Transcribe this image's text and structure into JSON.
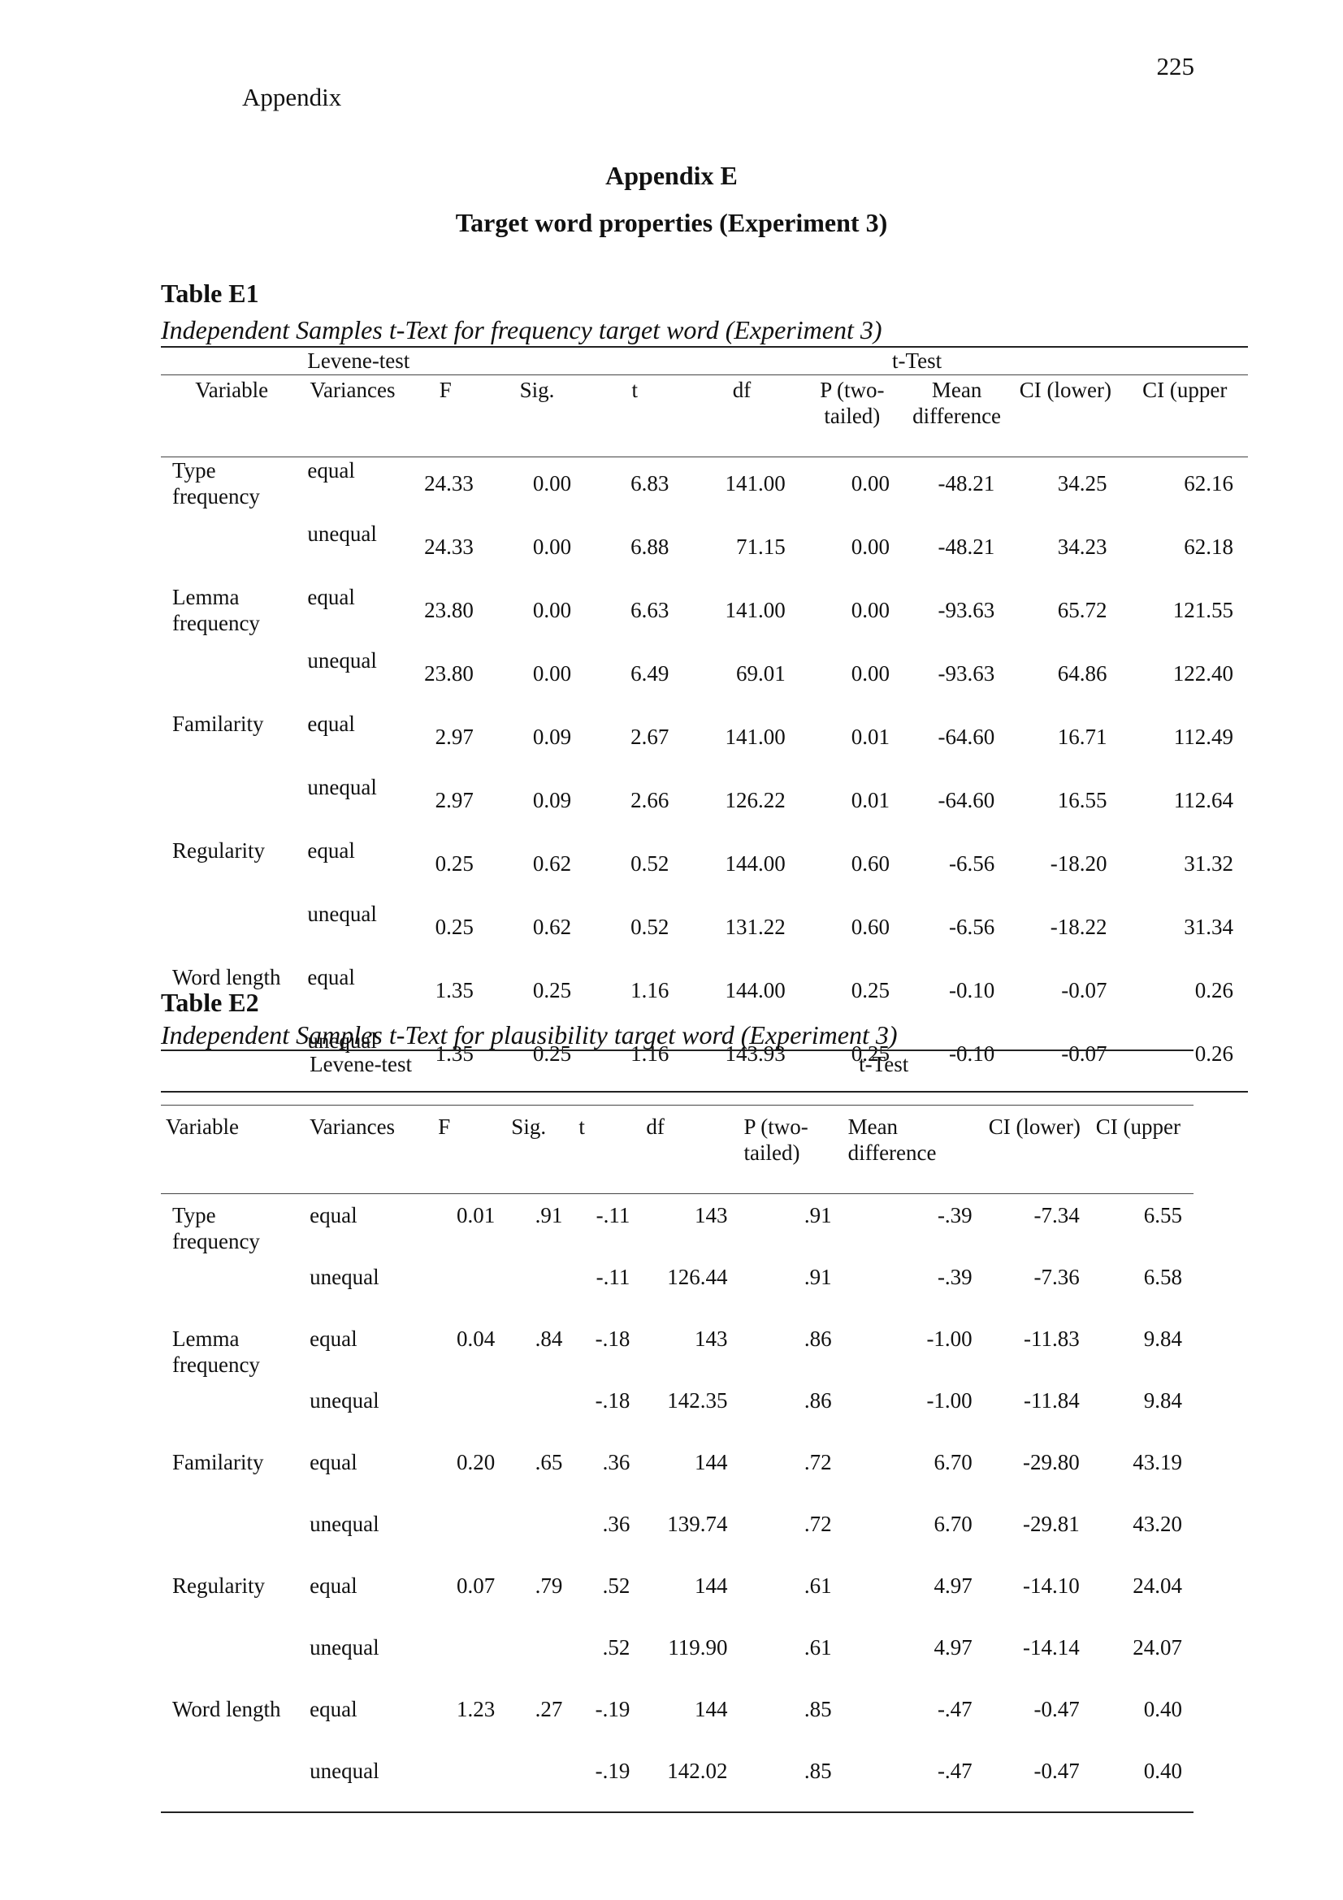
{
  "header": {
    "page_number": "225",
    "running_head": "Appendix"
  },
  "title": "Appendix E",
  "subtitle": "Target word properties (Experiment 3)",
  "tables": [
    {
      "label": "Table E1",
      "caption": "Independent Samples t-Text for frequency target word (Experiment 3)",
      "group_headers": [
        "Levene-test",
        "t-Test"
      ],
      "columns": [
        "Variable",
        "Variances",
        "F",
        "Sig.",
        "t",
        "df",
        "P (two-tailed)",
        "Mean difference",
        "CI (lower)",
        "CI (upper"
      ],
      "groups": [
        {
          "variable": "Type frequency",
          "rows": [
            [
              "equal",
              "24.33",
              "0.00",
              "6.83",
              "141.00",
              "0.00",
              "-48.21",
              "34.25",
              "62.16"
            ],
            [
              "unequal",
              "24.33",
              "0.00",
              "6.88",
              "71.15",
              "0.00",
              "-48.21",
              "34.23",
              "62.18"
            ]
          ]
        },
        {
          "variable": "Lemma frequency",
          "rows": [
            [
              "equal",
              "23.80",
              "0.00",
              "6.63",
              "141.00",
              "0.00",
              "-93.63",
              "65.72",
              "121.55"
            ],
            [
              "unequal",
              "23.80",
              "0.00",
              "6.49",
              "69.01",
              "0.00",
              "-93.63",
              "64.86",
              "122.40"
            ]
          ]
        },
        {
          "variable": "Familarity",
          "rows": [
            [
              "equal",
              "2.97",
              "0.09",
              "2.67",
              "141.00",
              "0.01",
              "-64.60",
              "16.71",
              "112.49"
            ],
            [
              "unequal",
              "2.97",
              "0.09",
              "2.66",
              "126.22",
              "0.01",
              "-64.60",
              "16.55",
              "112.64"
            ]
          ]
        },
        {
          "variable": "Regularity",
          "rows": [
            [
              "equal",
              "0.25",
              "0.62",
              "0.52",
              "144.00",
              "0.60",
              "-6.56",
              "-18.20",
              "31.32"
            ],
            [
              "unequal",
              "0.25",
              "0.62",
              "0.52",
              "131.22",
              "0.60",
              "-6.56",
              "-18.22",
              "31.34"
            ]
          ]
        },
        {
          "variable": "Word length",
          "rows": [
            [
              "equal",
              "1.35",
              "0.25",
              "1.16",
              "144.00",
              "0.25",
              "-0.10",
              "-0.07",
              "0.26"
            ],
            [
              "unequal",
              "1.35",
              "0.25",
              "1.16",
              "143.93",
              "0.25",
              "-0.10",
              "-0.07",
              "0.26"
            ]
          ]
        }
      ]
    },
    {
      "label": "Table E2",
      "caption": "Independent Samples t-Text for plausibility target word (Experiment 3)",
      "group_headers": [
        "Levene-test",
        "t-Test"
      ],
      "columns": [
        "Variable",
        "Variances",
        "F",
        "Sig.",
        "t",
        "df",
        "P (two-tailed)",
        "Mean difference",
        "CI (lower)",
        "CI (upper"
      ],
      "groups": [
        {
          "variable": "Type frequency",
          "F": "0.01",
          "Sig": ".91",
          "rows": [
            [
              "equal",
              "-.11",
              "143",
              ".91",
              "-.39",
              "-7.34",
              "6.55"
            ],
            [
              "unequal",
              "-.11",
              "126.44",
              ".91",
              "-.39",
              "-7.36",
              "6.58"
            ]
          ]
        },
        {
          "variable": "Lemma frequency",
          "F": "0.04",
          "Sig": ".84",
          "rows": [
            [
              "equal",
              "-.18",
              "143",
              ".86",
              "-1.00",
              "-11.83",
              "9.84"
            ],
            [
              "unequal",
              "-.18",
              "142.35",
              ".86",
              "-1.00",
              "-11.84",
              "9.84"
            ]
          ]
        },
        {
          "variable": "Familarity",
          "F": "0.20",
          "Sig": ".65",
          "rows": [
            [
              "equal",
              ".36",
              "144",
              ".72",
              "6.70",
              "-29.80",
              "43.19"
            ],
            [
              "unequal",
              ".36",
              "139.74",
              ".72",
              "6.70",
              "-29.81",
              "43.20"
            ]
          ]
        },
        {
          "variable": "Regularity",
          "F": "0.07",
          "Sig": ".79",
          "rows": [
            [
              "equal",
              ".52",
              "144",
              ".61",
              "4.97",
              "-14.10",
              "24.04"
            ],
            [
              "unequal",
              ".52",
              "119.90",
              ".61",
              "4.97",
              "-14.14",
              "24.07"
            ]
          ]
        },
        {
          "variable": "Word length",
          "F": "1.23",
          "Sig": ".27",
          "rows": [
            [
              "equal",
              "-.19",
              "144",
              ".85",
              "-.47",
              "-0.47",
              "0.40"
            ],
            [
              "unequal",
              "-.19",
              "142.02",
              ".85",
              "-.47",
              "-0.47",
              "0.40"
            ]
          ]
        }
      ]
    }
  ]
}
